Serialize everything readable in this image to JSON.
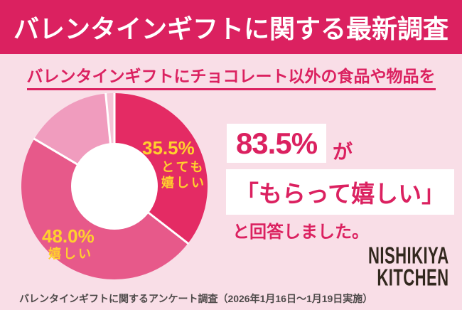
{
  "header": {
    "title": "バレンタインギフトに関する最新調査"
  },
  "subtitle": "バレンタインギフトにチョコレート以外の食品や物品を",
  "result": {
    "percent": "83.5%",
    "particle": "が",
    "quote": "「もらって嬉しい」",
    "suffix": "と回答しました。"
  },
  "logo": {
    "line1": "NISHIKIYA",
    "line2": "KITCHEN"
  },
  "footer": "バレンタインギフトに関するアンケート調査（2026年1月16日～1月19日実施）",
  "colors": {
    "banner": "#DB2160",
    "background": "#F9DEE7",
    "accent_text": "#DB2160",
    "label_yellow": "#FFD02E",
    "logo": "#32281E",
    "footer_text": "#4E4A4A"
  },
  "chart_data": {
    "type": "pie",
    "donut": true,
    "start_angle_deg": 0,
    "direction": "clockwise",
    "legend_position": "on-slices",
    "segments": [
      {
        "label": "とても嬉しい",
        "value": 35.5,
        "pct_label": "35.5%",
        "label_line1": "とても",
        "label_line2": "嬉しい",
        "color": "#E42B64"
      },
      {
        "label": "嬉しい",
        "value": 48.0,
        "pct_label": "48.0%",
        "label_line1": "嬉しい",
        "color": "#E7598A"
      },
      {
        "label": "",
        "value": 15.0,
        "color": "#F09CBE"
      },
      {
        "label": "",
        "value": 1.5,
        "color": "#F5C3D6"
      }
    ],
    "highlighted_total": {
      "value": 83.5,
      "of_labels": [
        "とても嬉しい",
        "嬉しい"
      ]
    }
  }
}
